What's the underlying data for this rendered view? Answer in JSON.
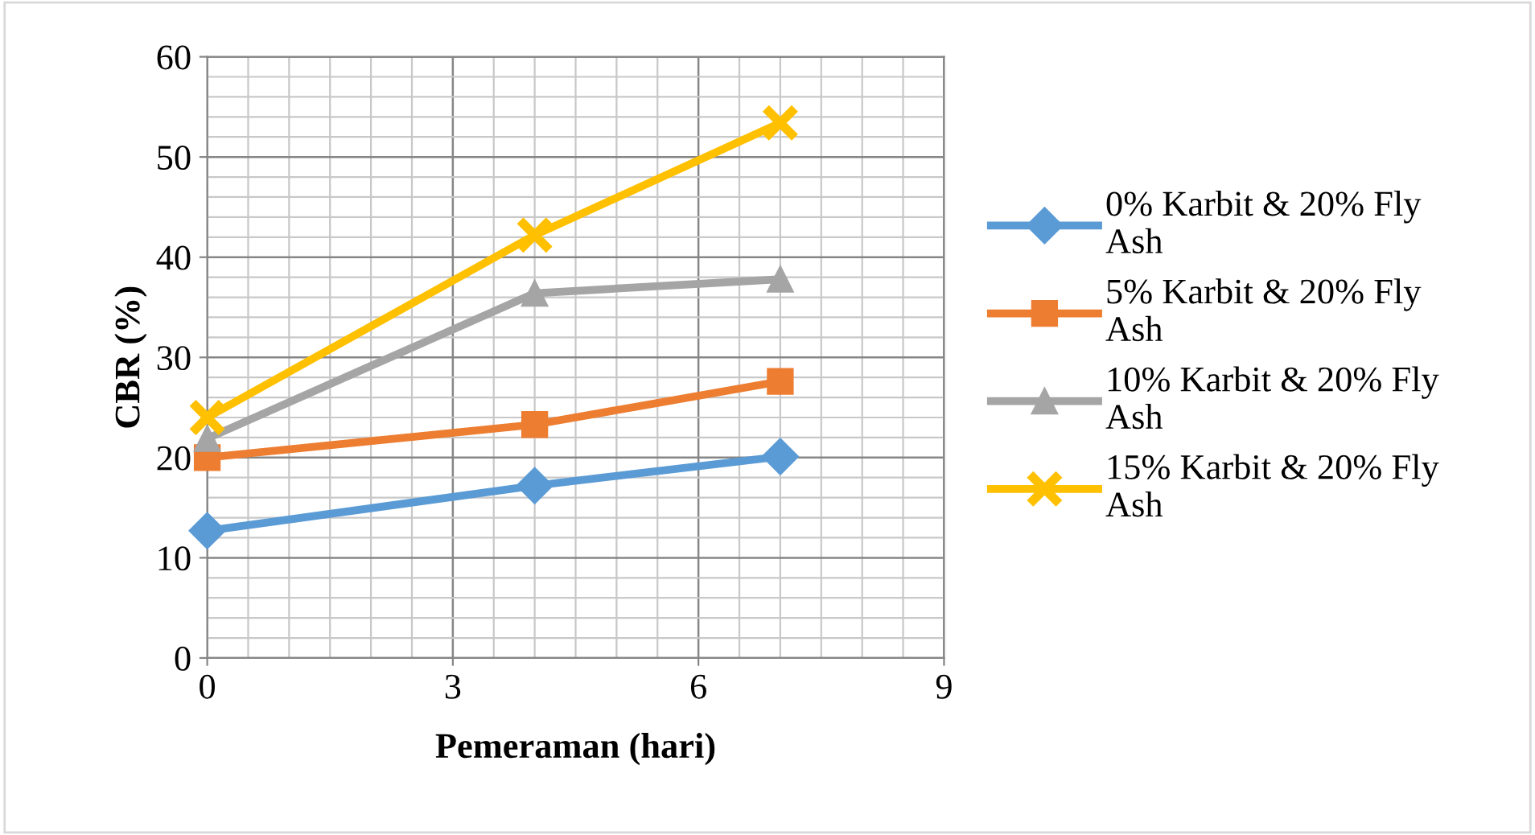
{
  "chart_data": {
    "type": "line",
    "xlabel": "Pemeraman (hari)",
    "ylabel": "CBR (%)",
    "x": [
      0,
      4,
      7
    ],
    "series": [
      {
        "name": "0% Karbit & 20% Fly Ash",
        "color": "#5b9bd5",
        "marker": "diamond",
        "values": [
          12.7,
          17.2,
          20.1
        ]
      },
      {
        "name": "5% Karbit & 20% Fly Ash",
        "color": "#ed7d31",
        "marker": "square",
        "values": [
          20.0,
          23.3,
          27.6
        ]
      },
      {
        "name": "10% Karbit & 20% Fly Ash",
        "color": "#a5a5a5",
        "marker": "triangle",
        "values": [
          21.9,
          36.4,
          37.8
        ]
      },
      {
        "name": "15% Karbit & 20% Fly Ash",
        "color": "#ffc000",
        "marker": "cross",
        "values": [
          24.0,
          42.2,
          53.4
        ]
      }
    ],
    "xlim": [
      0,
      9
    ],
    "xticks": [
      0,
      3,
      6,
      9
    ],
    "ylim": [
      0,
      60
    ],
    "yticks": [
      0,
      10,
      20,
      30,
      40,
      50,
      60
    ],
    "grid": true,
    "legend": "right",
    "line_style": "solid"
  }
}
